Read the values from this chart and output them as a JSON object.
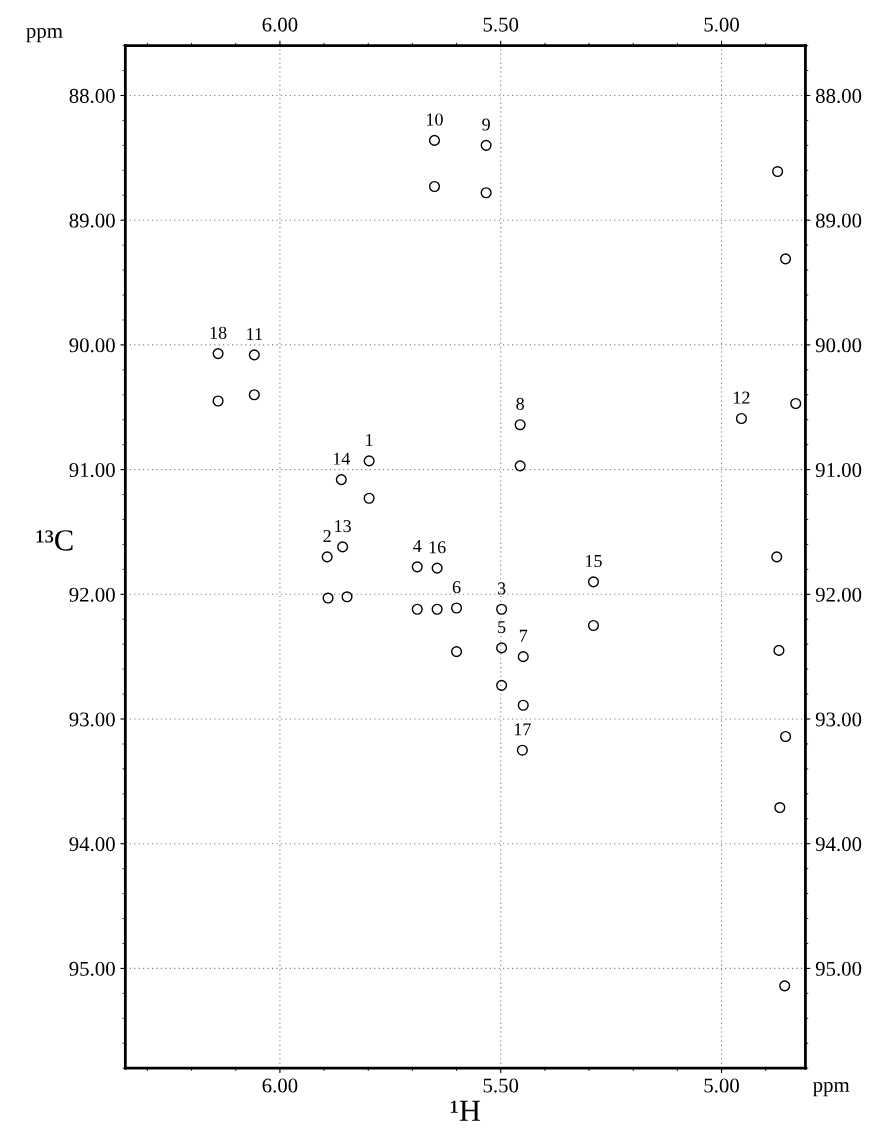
{
  "chart_data": {
    "type": "scatter",
    "xlabel": "¹H",
    "ylabel": "¹³C",
    "xlim": [
      6.35,
      4.81
    ],
    "ylim": [
      95.8,
      87.6
    ],
    "xticks": [
      {
        "value": 6.0,
        "label": "6.00"
      },
      {
        "value": 5.5,
        "label": "5.50"
      },
      {
        "value": 5.0,
        "label": "5.00"
      }
    ],
    "x2lim": [
      6.35,
      4.81
    ],
    "x2ticks": [
      {
        "value": 6.0,
        "label": "6.00"
      },
      {
        "value": 5.5,
        "label": "5.50"
      },
      {
        "value": 5.0,
        "label": "5.00"
      }
    ],
    "yticks": [
      {
        "value": 88,
        "label": "88.00"
      },
      {
        "value": 89,
        "label": "89.00"
      },
      {
        "value": 90,
        "label": "90.00"
      },
      {
        "value": 91,
        "label": "91.00"
      },
      {
        "value": 92,
        "label": "92.00"
      },
      {
        "value": 93,
        "label": "93.00"
      },
      {
        "value": 94,
        "label": "94.00"
      },
      {
        "value": 95,
        "label": "95.00"
      }
    ],
    "y2lim": [
      95.8,
      87.6
    ],
    "y2ticks": [
      {
        "value": 88,
        "label": "88.00"
      },
      {
        "value": 89,
        "label": "89.00"
      },
      {
        "value": 90,
        "label": "90.00"
      },
      {
        "value": 91,
        "label": "91.00"
      },
      {
        "value": 92,
        "label": "92.00"
      },
      {
        "value": 93,
        "label": "93.00"
      },
      {
        "value": 94,
        "label": "94.00"
      },
      {
        "value": 95,
        "label": "95.00"
      }
    ],
    "grid": true,
    "marker": "circle",
    "legend": false,
    "series": [
      {
        "color": "#000000",
        "x": [
          5.65,
          5.65,
          5.533,
          5.533,
          6.14,
          6.14,
          6.058,
          6.058,
          5.861,
          5.798,
          5.798,
          5.456,
          5.456,
          5.893,
          5.858,
          5.891,
          5.848,
          5.689,
          5.644,
          5.689,
          5.644,
          5.6,
          5.6,
          5.498,
          5.498,
          5.498,
          5.449,
          5.449,
          5.451,
          5.29,
          5.29,
          4.955
        ],
        "values": [
          88.36,
          88.73,
          88.4,
          88.78,
          90.07,
          90.45,
          90.08,
          90.4,
          91.08,
          90.93,
          91.23,
          90.64,
          90.97,
          91.7,
          91.62,
          92.03,
          92.02,
          91.78,
          91.79,
          92.12,
          92.12,
          92.11,
          92.46,
          92.12,
          92.43,
          92.73,
          92.5,
          92.89,
          93.25,
          91.9,
          92.25,
          90.59
        ]
      },
      {
        "color": "#000000",
        "x": [
          4.873,
          4.855,
          4.832,
          4.875,
          4.87,
          4.855,
          4.868,
          4.857
        ],
        "values": [
          88.61,
          89.31,
          90.47,
          91.7,
          92.45,
          93.14,
          93.71,
          95.14
        ]
      }
    ],
    "annotations": [
      {
        "text": "10",
        "x": 5.65,
        "y": 88.36
      },
      {
        "text": "9",
        "x": 5.533,
        "y": 88.4
      },
      {
        "text": "18",
        "x": 6.14,
        "y": 90.07
      },
      {
        "text": "11",
        "x": 6.058,
        "y": 90.08
      },
      {
        "text": "14",
        "x": 5.861,
        "y": 91.08
      },
      {
        "text": "1",
        "x": 5.798,
        "y": 90.93
      },
      {
        "text": "8",
        "x": 5.456,
        "y": 90.64
      },
      {
        "text": "2",
        "x": 5.893,
        "y": 91.7
      },
      {
        "text": "13",
        "x": 5.858,
        "y": 91.62
      },
      {
        "text": "4",
        "x": 5.689,
        "y": 91.78
      },
      {
        "text": "16",
        "x": 5.644,
        "y": 91.79
      },
      {
        "text": "6",
        "x": 5.6,
        "y": 92.11
      },
      {
        "text": "3",
        "x": 5.498,
        "y": 92.12
      },
      {
        "text": "5",
        "x": 5.498,
        "y": 92.43
      },
      {
        "text": "7",
        "x": 5.449,
        "y": 92.5
      },
      {
        "text": "17",
        "x": 5.451,
        "y": 93.25
      },
      {
        "text": "15",
        "x": 5.29,
        "y": 91.9
      },
      {
        "text": "12",
        "x": 4.955,
        "y": 90.59
      },
      "ppm",
      "ppm"
    ]
  }
}
